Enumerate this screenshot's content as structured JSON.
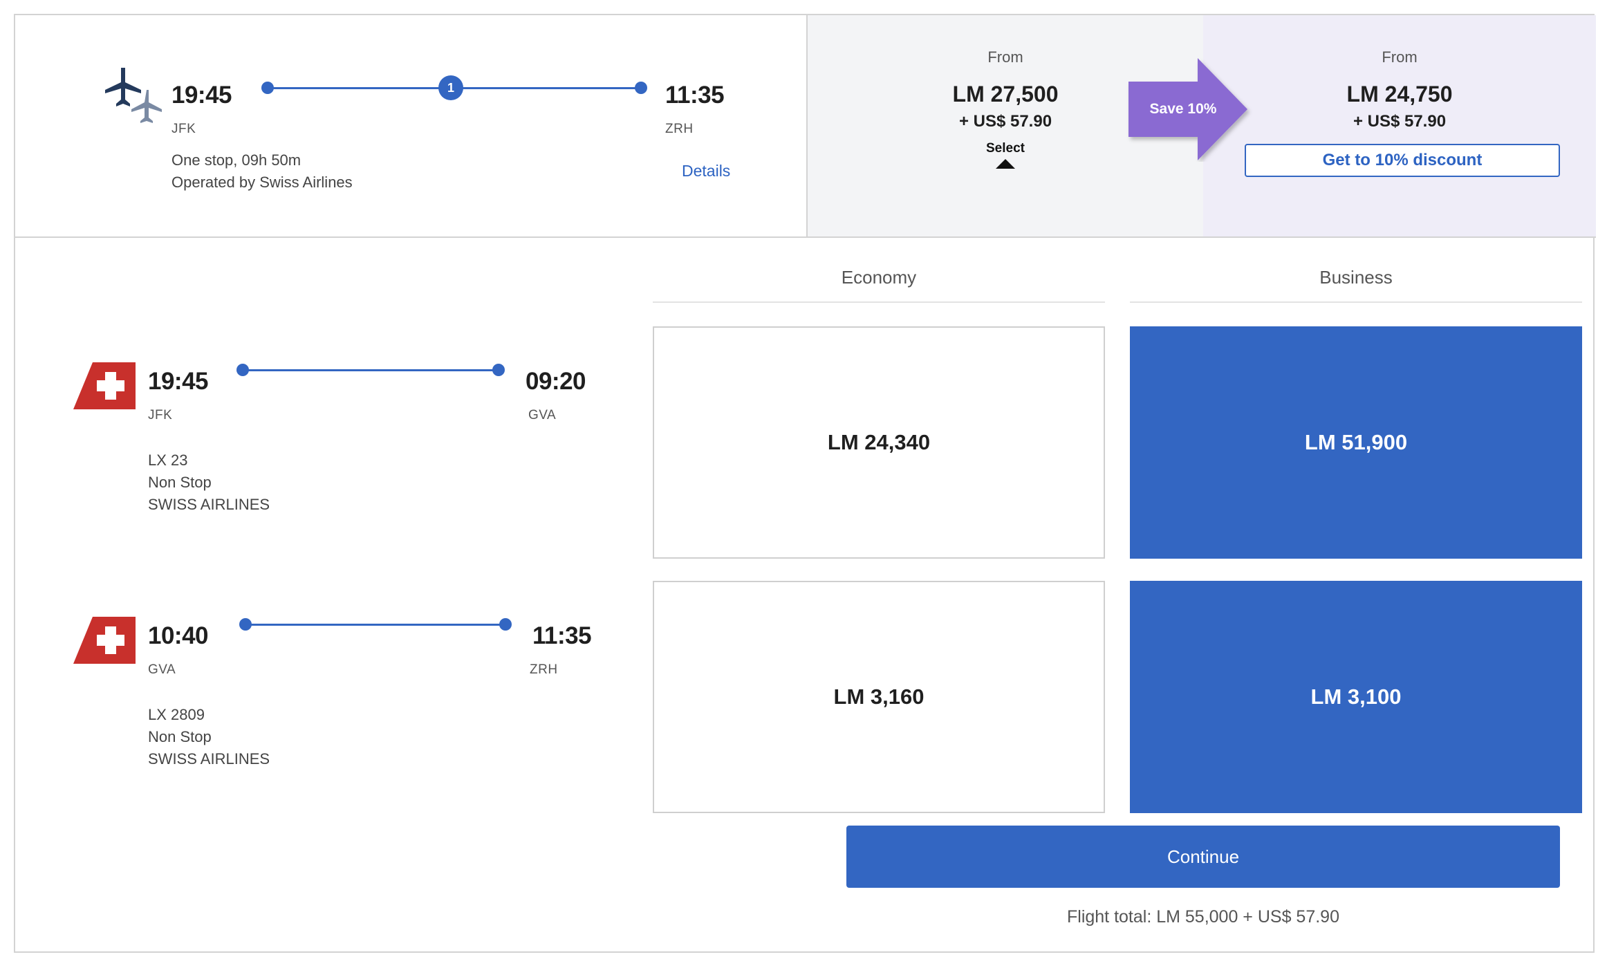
{
  "summary": {
    "depart_time": "19:45",
    "depart_code": "JFK",
    "arrive_time": "11:35",
    "arrive_code": "ZRH",
    "stops_count": "1",
    "stops_text": "One stop, 09h 50m",
    "operator_text": "Operated by Swiss Airlines",
    "details_label": "Details"
  },
  "economy_from": {
    "from_label": "From",
    "points": "LM 27,500",
    "cash": "+ US$ 57.90",
    "select_label": "Select"
  },
  "savings": {
    "label": "Save 10%",
    "color": "#8a6ad2"
  },
  "business_from": {
    "from_label": "From",
    "points": "LM 24,750",
    "cash": "+ US$ 57.90",
    "discount_button": "Get to 10% discount"
  },
  "cabins": {
    "economy": "Economy",
    "business": "Business"
  },
  "segments": [
    {
      "depart_time": "19:45",
      "depart_code": "JFK",
      "arrive_time": "09:20",
      "arrive_code": "GVA",
      "flight_no": "LX 23",
      "stops": "Non Stop",
      "airline": "SWISS AIRLINES",
      "economy_price": "LM 24,340",
      "business_price": "LM 51,900"
    },
    {
      "depart_time": "10:40",
      "depart_code": "GVA",
      "arrive_time": "11:35",
      "arrive_code": "ZRH",
      "flight_no": "LX 2809",
      "stops": "Non Stop",
      "airline": "SWISS AIRLINES",
      "economy_price": "LM 3,160",
      "business_price": "LM 3,100"
    }
  ],
  "continue_label": "Continue",
  "flight_total": "Flight total: LM 55,000 + US$ 57.90",
  "colors": {
    "accent": "#3366c2",
    "brand_red": "#c8302c",
    "navy_plane": "#243a5c",
    "grey_plane": "#7a8aa3"
  }
}
